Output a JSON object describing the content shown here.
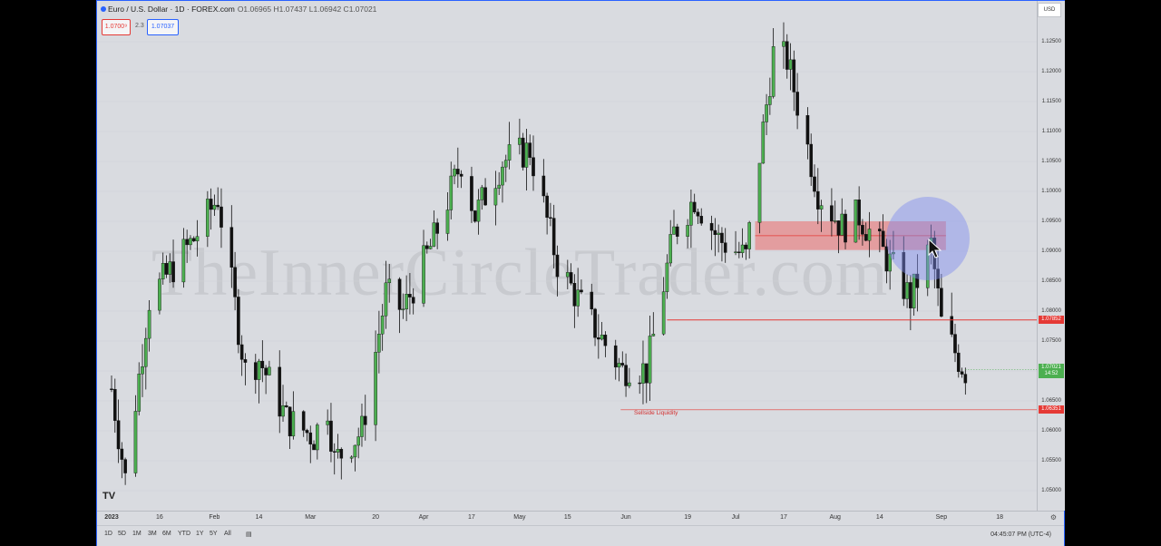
{
  "header": {
    "symbol_title": "Euro / U.S. Dollar · 1D · FOREX.com",
    "ohlc": "O1.06965 H1.07437 L1.06942 C1.07021",
    "sell_price": "1.0700⁹",
    "spread": "2.3",
    "buy_price": "1.07037",
    "currency": "USD"
  },
  "watermark": "TheInnerCircleTrader.com",
  "logo": "TV",
  "annotations": {
    "sellside_label": "Sellside Liquidity"
  },
  "price_tags": {
    "current": "1.07021",
    "countdown": "14:52",
    "level_red": "1.07852",
    "level_sellside": "1.06351"
  },
  "bottom_bar": {
    "ranges": [
      "1D",
      "5D",
      "1M",
      "3M",
      "6M",
      "YTD",
      "1Y",
      "5Y",
      "All"
    ],
    "clock": "04:45:07 PM (UTC-4)"
  },
  "colors": {
    "up": "#4caf50",
    "down": "#111111",
    "background": "#d9dbe0",
    "zone_fill": "#ef5350",
    "red_line": "#e53935",
    "highlight_circle": "#7f8cf0"
  },
  "chart_data": {
    "type": "candlestick",
    "title": "Euro / U.S. Dollar · 1D · FOREX.com",
    "xlabel": "",
    "ylabel": "",
    "ylim": [
      1.0455,
      1.129
    ],
    "time_ticks": [
      "2023",
      "16",
      "Feb",
      "14",
      "Mar",
      "20",
      "Apr",
      "17",
      "May",
      "15",
      "Jun",
      "19",
      "Jul",
      "17",
      "Aug",
      "14",
      "Sep",
      "18"
    ],
    "price_ticks": [
      "1.12500",
      "1.12000",
      "1.11500",
      "1.11000",
      "1.10500",
      "1.10000",
      "1.09500",
      "1.09000",
      "1.08500",
      "1.08000",
      "1.07500",
      "1.07000",
      "1.06500",
      "1.06000",
      "1.05500",
      "1.05000"
    ],
    "anchors": [
      {
        "label": "2023-01-02",
        "price": 1.067
      },
      {
        "label": "2023-01-06",
        "price": 1.052
      },
      {
        "label": "2023-01-13",
        "price": 1.082
      },
      {
        "label": "2023-01-26",
        "price": 1.092
      },
      {
        "label": "2023-02-02",
        "price": 1.099
      },
      {
        "label": "2023-02-10",
        "price": 1.07
      },
      {
        "label": "2023-02-14",
        "price": 1.072
      },
      {
        "label": "2023-02-22",
        "price": 1.062
      },
      {
        "label": "2023-03-02",
        "price": 1.059
      },
      {
        "label": "2023-03-06",
        "price": 1.064
      },
      {
        "label": "2023-03-08",
        "price": 1.055
      },
      {
        "label": "2023-03-16",
        "price": 1.06
      },
      {
        "label": "2023-03-23",
        "price": 1.083
      },
      {
        "label": "2023-03-28",
        "price": 1.08
      },
      {
        "label": "2023-04-06",
        "price": 1.092
      },
      {
        "label": "2023-04-14",
        "price": 1.105
      },
      {
        "label": "2023-04-18",
        "price": 1.096
      },
      {
        "label": "2023-04-26",
        "price": 1.105
      },
      {
        "label": "2023-05-04",
        "price": 1.107
      },
      {
        "label": "2023-05-12",
        "price": 1.088
      },
      {
        "label": "2023-05-22",
        "price": 1.078
      },
      {
        "label": "2023-05-31",
        "price": 1.07
      },
      {
        "label": "2023-06-02",
        "price": 1.071
      },
      {
        "label": "2023-06-07",
        "price": 1.07
      },
      {
        "label": "2023-06-15",
        "price": 1.093
      },
      {
        "label": "2023-06-21",
        "price": 1.099
      },
      {
        "label": "2023-06-28",
        "price": 1.092
      },
      {
        "label": "2023-07-06",
        "price": 1.089
      },
      {
        "label": "2023-07-14",
        "price": 1.123
      },
      {
        "label": "2023-07-18",
        "price": 1.122
      },
      {
        "label": "2023-07-27",
        "price": 1.1
      },
      {
        "label": "2023-08-03",
        "price": 1.094
      },
      {
        "label": "2023-08-08",
        "price": 1.096
      },
      {
        "label": "2023-08-17",
        "price": 1.088
      },
      {
        "label": "2023-08-23",
        "price": 1.082
      },
      {
        "label": "2023-08-29",
        "price": 1.091
      },
      {
        "label": "2023-09-01",
        "price": 1.078
      },
      {
        "label": "2023-09-06",
        "price": 1.072
      },
      {
        "label": "2023-09-08",
        "price": 1.07
      }
    ],
    "levels": [
      {
        "name": "red-level-line",
        "price": 1.07852
      },
      {
        "name": "sellside-liquidity-line",
        "price": 1.06351
      }
    ],
    "zone": {
      "from": "2023-07-10",
      "to": "2023-09-01",
      "price_low": 1.0902,
      "price_high": 1.095
    },
    "last_price": 1.07021
  }
}
